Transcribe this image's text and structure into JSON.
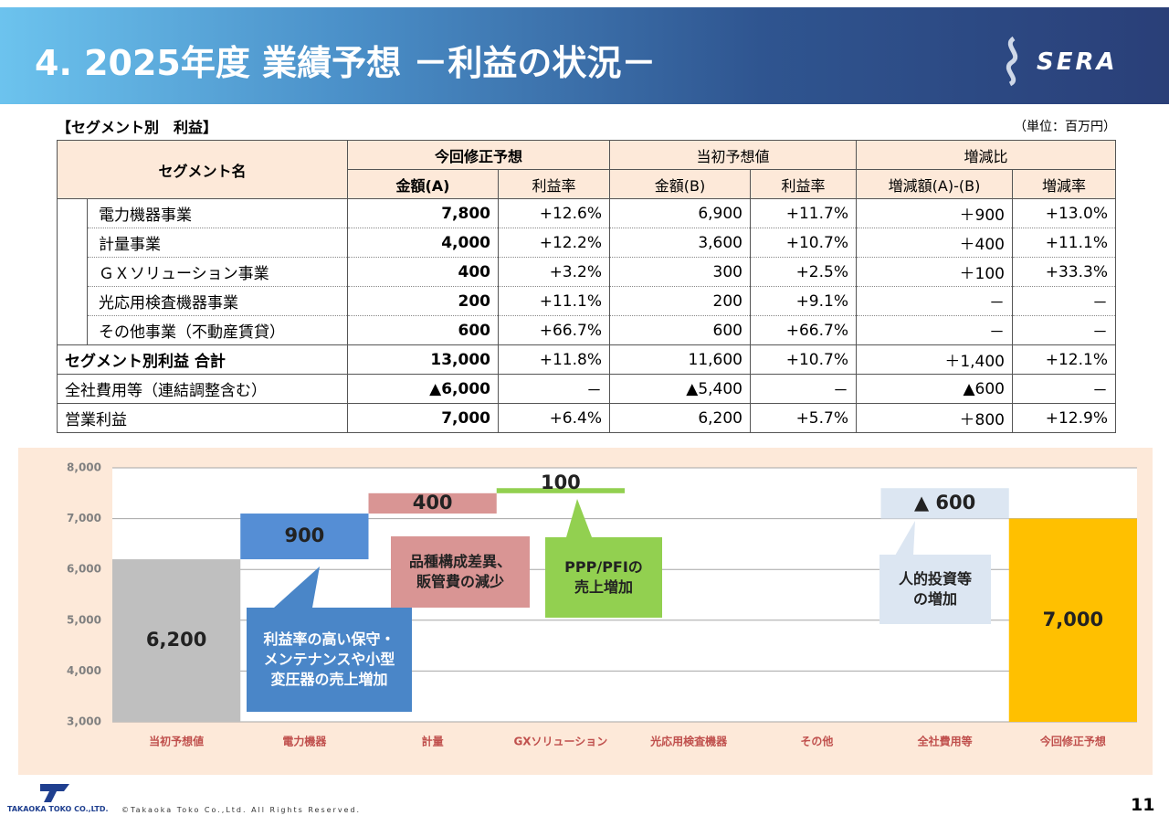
{
  "header": {
    "title": "4. 2025年度 業績予想 －利益の状況－",
    "logo": "SERA"
  },
  "table": {
    "caption": "【セグメント別　利益】",
    "unit": "（単位：百万円）",
    "corner": "セグメント名",
    "groups": [
      "今回修正予想",
      "当初予想値",
      "増減比"
    ],
    "columns": [
      "金額(A)",
      "利益率",
      "金額(B)",
      "利益率",
      "増減額(A)-(B)",
      "増減率"
    ],
    "segments": [
      [
        "電力機器事業",
        "7,800",
        "+12.6%",
        "6,900",
        "+11.7%",
        "＋900",
        "+13.0%"
      ],
      [
        "計量事業",
        "4,000",
        "+12.2%",
        "3,600",
        "+10.7%",
        "＋400",
        "+11.1%"
      ],
      [
        "ＧＸソリューション事業",
        "400",
        "+3.2%",
        "300",
        "+2.5%",
        "＋100",
        "+33.3%"
      ],
      [
        "光応用検査機器事業",
        "200",
        "+11.1%",
        "200",
        "+9.1%",
        "－",
        "－"
      ],
      [
        "その他事業（不動産賃貸）",
        "600",
        "+66.7%",
        "600",
        "+66.7%",
        "－",
        "－"
      ]
    ],
    "totals": [
      [
        "セグメント別利益 合計",
        "13,000",
        "+11.8%",
        "11,600",
        "+10.7%",
        "＋1,400",
        "+12.1%"
      ],
      [
        "全社費用等（連結調整含む）",
        "▲6,000",
        "－",
        "▲5,400",
        "－",
        "▲600",
        "－"
      ],
      [
        "営業利益",
        "7,000",
        "+6.4%",
        "6,200",
        "+5.7%",
        "＋800",
        "+12.9%"
      ]
    ]
  },
  "chart_data": {
    "type": "waterfall",
    "categories": [
      "当初予想値",
      "電力機器",
      "計量",
      "GXソリューション",
      "光応用検査機器",
      "その他",
      "全社費用等",
      "今回修正予想"
    ],
    "values": [
      6200,
      900,
      400,
      100,
      null,
      null,
      -600,
      7000
    ],
    "value_labels": [
      "6,200",
      "900",
      "400",
      "100",
      null,
      null,
      "▲ 600",
      "7,000"
    ],
    "colors": [
      "#bfbfbf",
      "#558ed5",
      "#d99594",
      "#92d050",
      null,
      null,
      "#dce6f2",
      "#ffc000"
    ],
    "ylim": [
      3000,
      8000
    ],
    "yticks": [
      {
        "value": 3000,
        "label": "3,000"
      },
      {
        "value": 4000,
        "label": "4,000"
      },
      {
        "value": 5000,
        "label": "5,000"
      },
      {
        "value": 6000,
        "label": "6,000"
      },
      {
        "value": 7000,
        "label": "7,000"
      },
      {
        "value": 8000,
        "label": "8,000"
      }
    ],
    "grid": true,
    "annotations": [
      {
        "text": "利益率の高い保守・\nメンテナンスや小型\n変圧器の売上増加",
        "color": "#4a86c8"
      },
      {
        "text": "品種構成差異、\n販管費の減少",
        "color": "#d99594"
      },
      {
        "text": "PPP/PFIの\n売上増加",
        "color": "#92d050"
      },
      {
        "text": "人的投資等\nの増加",
        "color": "#dce6f2"
      }
    ]
  },
  "footer": {
    "company": "TAKAOKA TOKO CO.,LTD.",
    "copyright": "©Takaoka Toko Co.,Ltd. All Rights Reserved.",
    "page": "11"
  }
}
